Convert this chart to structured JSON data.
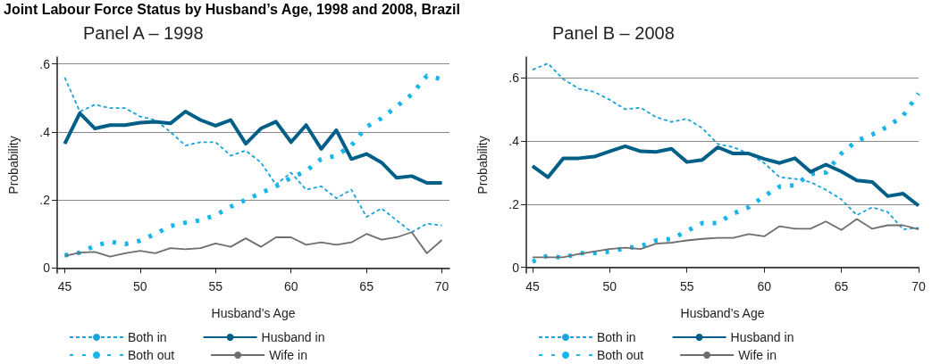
{
  "chart_data": [
    {
      "type": "line",
      "title": "Joint Labour Force Status by Husband’s Age, 1998 and 2008, Brazil",
      "subtitle": "Panel A – 1998",
      "xlabel": "Husband’s Age",
      "ylabel": "Probability",
      "x": [
        45,
        46,
        47,
        48,
        49,
        50,
        51,
        52,
        53,
        54,
        55,
        56,
        57,
        58,
        59,
        60,
        61,
        62,
        63,
        64,
        65,
        66,
        67,
        68,
        69,
        70
      ],
      "xlim": [
        44.5,
        70.5
      ],
      "xticks": [
        45,
        50,
        55,
        60,
        65,
        70
      ],
      "ylim": [
        -0.015,
        0.62
      ],
      "yticks": [
        {
          "value": 0,
          "label": "0"
        },
        {
          "value": 0.2,
          "label": ".2"
        },
        {
          "value": 0.4,
          "label": ".4"
        },
        {
          "value": 0.6,
          "label": ".6"
        }
      ],
      "grid": "y",
      "legend": "bottom",
      "marker": "none",
      "series": [
        {
          "name": "Both in",
          "color": "#1aa3dc",
          "line_style": "dashed",
          "values": [
            0.56,
            0.46,
            0.48,
            0.47,
            0.47,
            0.445,
            0.435,
            0.4,
            0.36,
            0.37,
            0.37,
            0.33,
            0.345,
            0.31,
            0.245,
            0.28,
            0.23,
            0.24,
            0.205,
            0.23,
            0.15,
            0.175,
            0.14,
            0.105,
            0.13,
            0.125
          ]
        },
        {
          "name": "Both out",
          "color": "#18b4ec",
          "line_style": "dotted",
          "values": [
            0.037,
            0.045,
            0.065,
            0.077,
            0.07,
            0.08,
            0.1,
            0.123,
            0.133,
            0.14,
            0.155,
            0.18,
            0.2,
            0.22,
            0.24,
            0.265,
            0.285,
            0.32,
            0.33,
            0.36,
            0.415,
            0.44,
            0.475,
            0.51,
            0.565,
            0.555
          ]
        },
        {
          "name": "Husband in",
          "color": "#005f87",
          "line_style": "solid",
          "values": [
            0.365,
            0.455,
            0.41,
            0.42,
            0.42,
            0.427,
            0.43,
            0.425,
            0.46,
            0.435,
            0.418,
            0.435,
            0.365,
            0.41,
            0.43,
            0.37,
            0.42,
            0.35,
            0.405,
            0.32,
            0.335,
            0.31,
            0.265,
            0.27,
            0.25,
            0.25
          ]
        },
        {
          "name": "Wife in",
          "color": "#6e6e6e",
          "line_style": "solid",
          "values": [
            0.035,
            0.045,
            0.047,
            0.033,
            0.043,
            0.05,
            0.043,
            0.058,
            0.055,
            0.058,
            0.072,
            0.062,
            0.087,
            0.062,
            0.09,
            0.09,
            0.068,
            0.075,
            0.068,
            0.075,
            0.1,
            0.083,
            0.09,
            0.105,
            0.043,
            0.082
          ]
        }
      ]
    },
    {
      "type": "line",
      "subtitle": "Panel B – 2008",
      "xlabel": "Husband’s Age",
      "ylabel": "Probability",
      "x": [
        45,
        46,
        47,
        48,
        49,
        50,
        51,
        52,
        53,
        54,
        55,
        56,
        57,
        58,
        59,
        60,
        61,
        62,
        63,
        64,
        65,
        66,
        67,
        68,
        69,
        70
      ],
      "xlim": [
        44.6,
        70
      ],
      "xticks": [
        45,
        50,
        55,
        60,
        65,
        70
      ],
      "ylim": [
        -0.018,
        0.665
      ],
      "yticks": [
        {
          "value": 0,
          "label": "0"
        },
        {
          "value": 0.2,
          "label": ".2"
        },
        {
          "value": 0.4,
          "label": ".4"
        },
        {
          "value": 0.6,
          "label": ".6"
        }
      ],
      "grid": "y",
      "legend": "bottom",
      "marker": "none",
      "series": [
        {
          "name": "Both in",
          "color": "#1aa3dc",
          "line_style": "dashed",
          "values": [
            0.625,
            0.645,
            0.595,
            0.565,
            0.555,
            0.53,
            0.5,
            0.505,
            0.475,
            0.46,
            0.47,
            0.44,
            0.39,
            0.38,
            0.36,
            0.33,
            0.285,
            0.28,
            0.27,
            0.245,
            0.215,
            0.165,
            0.19,
            0.175,
            0.12,
            0.125
          ]
        },
        {
          "name": "Both out",
          "color": "#18b4ec",
          "line_style": "dotted",
          "values": [
            0.018,
            0.037,
            0.03,
            0.045,
            0.045,
            0.05,
            0.06,
            0.067,
            0.085,
            0.09,
            0.115,
            0.14,
            0.14,
            0.17,
            0.19,
            0.225,
            0.255,
            0.26,
            0.295,
            0.3,
            0.36,
            0.4,
            0.42,
            0.445,
            0.48,
            0.55
          ]
        },
        {
          "name": "Husband in",
          "color": "#005f87",
          "line_style": "solid",
          "values": [
            0.32,
            0.285,
            0.345,
            0.345,
            0.35,
            0.367,
            0.383,
            0.367,
            0.365,
            0.375,
            0.333,
            0.34,
            0.38,
            0.36,
            0.36,
            0.343,
            0.33,
            0.345,
            0.302,
            0.325,
            0.303,
            0.275,
            0.27,
            0.225,
            0.233,
            0.195
          ]
        },
        {
          "name": "Wife in",
          "color": "#6e6e6e",
          "line_style": "solid",
          "values": [
            0.032,
            0.032,
            0.032,
            0.042,
            0.05,
            0.058,
            0.062,
            0.058,
            0.075,
            0.078,
            0.085,
            0.09,
            0.093,
            0.093,
            0.105,
            0.098,
            0.13,
            0.122,
            0.122,
            0.145,
            0.118,
            0.153,
            0.122,
            0.133,
            0.133,
            0.12
          ]
        }
      ]
    }
  ]
}
